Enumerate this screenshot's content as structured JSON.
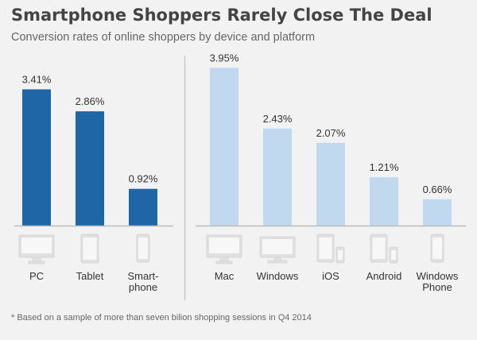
{
  "title": "Smartphone Shoppers Rarely Close The Deal",
  "subtitle": "Conversion rates of online shoppers by device and platform",
  "footnote": "* Based on a sample of more than seven bilion shopping sessions in Q4 2014",
  "colors": {
    "device": "#1f66a6",
    "platform": "#c1d9ee",
    "baseline": "#bdbdbd",
    "divider": "#c8c8c8",
    "icon": "#dddddd"
  },
  "chart_data": [
    {
      "type": "bar",
      "title": "",
      "categories": [
        "PC",
        "Tablet",
        "Smart-\nphone"
      ],
      "values": [
        3.41,
        2.86,
        0.92
      ],
      "value_labels": [
        "3.41%",
        "2.86%",
        "0.92%"
      ],
      "icons": [
        "desktop-monitor-icon",
        "tablet-icon",
        "smartphone-icon"
      ],
      "color": "#1f66a6",
      "ylim": [
        0,
        4.2
      ],
      "grid": false
    },
    {
      "type": "bar",
      "title": "",
      "categories": [
        "Mac",
        "Windows",
        "iOS",
        "Android",
        "Windows\nPhone"
      ],
      "values": [
        3.95,
        2.43,
        2.07,
        1.21,
        0.66
      ],
      "value_labels": [
        "3.95%",
        "2.43%",
        "2.07%",
        "1.21%",
        "0.66%"
      ],
      "icons": [
        "imac-icon",
        "windows-monitor-icon",
        "ios-devices-icon",
        "android-devices-icon",
        "windows-phone-icon"
      ],
      "color": "#c1d9ee",
      "ylim": [
        0,
        4.2
      ],
      "grid": false
    }
  ]
}
